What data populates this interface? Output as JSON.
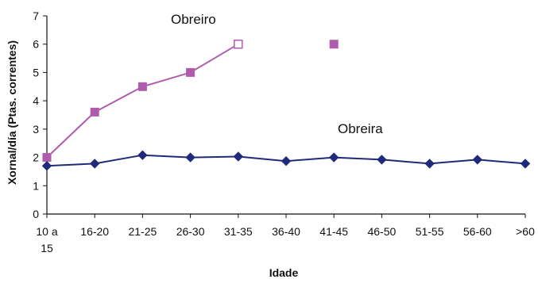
{
  "chart_data": {
    "type": "line",
    "title": "",
    "xlabel": "Idade",
    "ylabel": "Xornal/día (Ptas. correntes)",
    "ylim": [
      0,
      7
    ],
    "yticks": [
      0,
      1,
      2,
      3,
      4,
      5,
      6,
      7
    ],
    "grid": false,
    "categories": [
      "10 a 15",
      "16-20",
      "21-25",
      "26-30",
      "31-35",
      "36-40",
      "41-45",
      "46-50",
      "51-55",
      "56-60",
      ">60"
    ],
    "category_labels": [
      [
        "10 a",
        "15"
      ],
      [
        "16-20"
      ],
      [
        "21-25"
      ],
      [
        "26-30"
      ],
      [
        "31-35"
      ],
      [
        "36-40"
      ],
      [
        "41-45"
      ],
      [
        "46-50"
      ],
      [
        "51-55"
      ],
      [
        "56-60"
      ],
      [
        ">60"
      ]
    ],
    "series": [
      {
        "name": "Obreiro",
        "color": "#b05cae",
        "marker": "square",
        "hollow_points": [
          4
        ],
        "values": [
          2.0,
          3.6,
          4.5,
          5.0,
          6.0,
          null,
          6.0,
          null,
          null,
          null,
          null
        ]
      },
      {
        "name": "Obreira",
        "color": "#1f2a7a",
        "marker": "diamond",
        "values": [
          1.7,
          1.78,
          2.08,
          2.0,
          2.03,
          1.87,
          2.0,
          1.92,
          1.78,
          1.92,
          1.78
        ]
      }
    ]
  }
}
